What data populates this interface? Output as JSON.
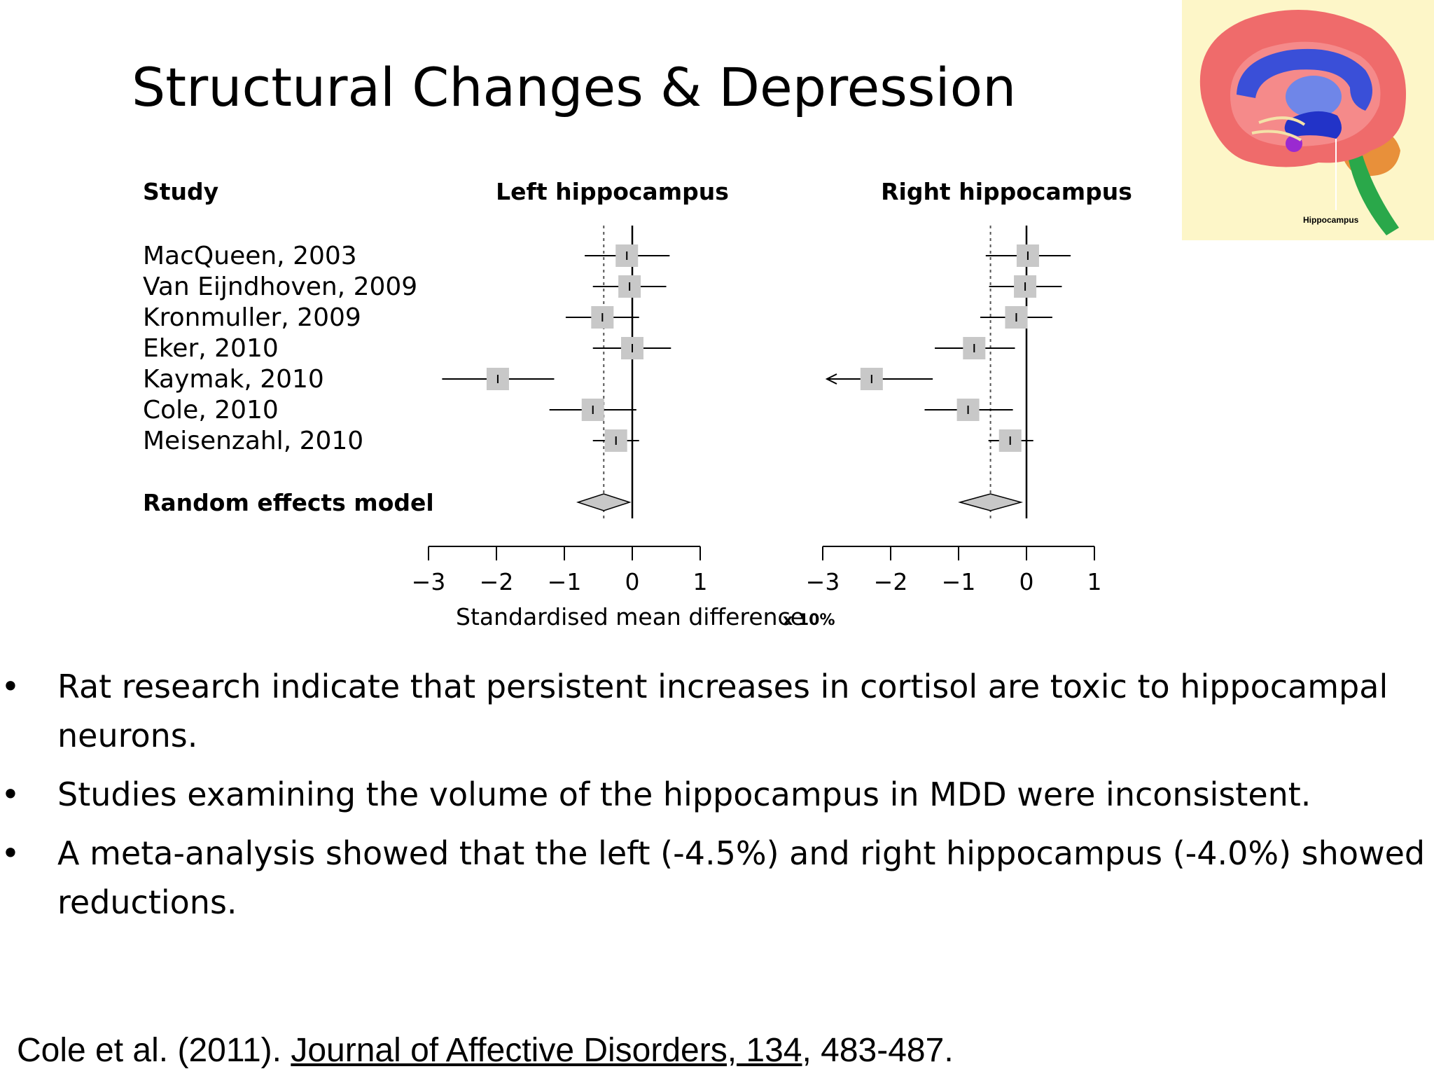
{
  "slide": {
    "title": "Structural Changes & Depression",
    "bullets": [
      "Rat research indicate that persistent increases in cortisol are toxic to  hippocampal neurons.",
      "Studies examining the volume of the hippocampus in MDD were inconsistent.",
      "A meta-analysis showed that the left (-4.5%) and right hippocampus (-4.0%) showed reductions."
    ],
    "bullet_symbol": "•",
    "citation": {
      "authors": "Cole et al. (2011). ",
      "journal": "Journal of Affective Disorders, 134",
      "pages": ", 483-487."
    }
  },
  "brain_image": {
    "label": "Hippocampus",
    "icon": "brain-hippocampus-illustration",
    "colors": {
      "background": "#fdf6c8",
      "cortex": "#ef6b6b",
      "ventricle": "#3a4fd8",
      "brainstem": "#2aa84a",
      "cerebellum": "#e8903a"
    }
  },
  "chart_data": {
    "type": "forest",
    "header_study": "Study",
    "study_labels": [
      "MacQueen, 2003",
      "Van Eijndhoven, 2009",
      "Kronmuller, 2009",
      "Eker, 2010",
      "Kaymak, 2010",
      "Cole, 2010",
      "Meisenzahl, 2010"
    ],
    "summary_label": "Random effects model",
    "xlabel": "Standardised mean difference",
    "xlabel_note": "x 10%",
    "xlim": [
      -3,
      1
    ],
    "x_ticks": [
      "−3",
      "−2",
      "−1",
      "0",
      "1"
    ],
    "panels": [
      {
        "title": "Left hippocampus",
        "studies": [
          {
            "est": -0.08,
            "low": -0.7,
            "high": 0.55
          },
          {
            "est": -0.04,
            "low": -0.58,
            "high": 0.5
          },
          {
            "est": -0.44,
            "low": -0.98,
            "high": 0.1
          },
          {
            "est": 0.0,
            "low": -0.58,
            "high": 0.57
          },
          {
            "est": -1.98,
            "low": -2.8,
            "high": -1.15
          },
          {
            "est": -0.58,
            "low": -1.22,
            "high": 0.06
          },
          {
            "est": -0.24,
            "low": -0.58,
            "high": 0.1
          }
        ],
        "summary": {
          "est": -0.42,
          "low": -0.8,
          "high": -0.04
        },
        "dashed_x": -0.42
      },
      {
        "title": "Right hippocampus",
        "studies": [
          {
            "est": 0.02,
            "low": -0.6,
            "high": 0.65
          },
          {
            "est": -0.02,
            "low": -0.55,
            "high": 0.52
          },
          {
            "est": -0.15,
            "low": -0.68,
            "high": 0.38
          },
          {
            "est": -0.77,
            "low": -1.35,
            "high": -0.17
          },
          {
            "est": -2.28,
            "low": -3.0,
            "high": -1.38,
            "arrow_left": true
          },
          {
            "est": -0.86,
            "low": -1.5,
            "high": -0.2
          },
          {
            "est": -0.24,
            "low": -0.56,
            "high": 0.1
          }
        ],
        "summary": {
          "est": -0.53,
          "low": -0.98,
          "high": -0.08
        },
        "dashed_x": -0.53
      }
    ],
    "grid": false,
    "colors": {
      "marker": "#c8c8c8",
      "line": "#000000",
      "diamond": "#c8c8c8"
    }
  }
}
